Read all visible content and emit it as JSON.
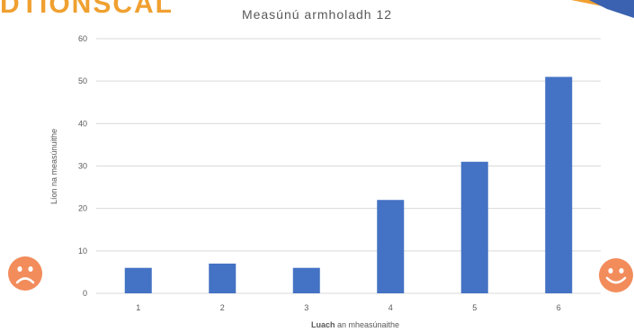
{
  "logo": {
    "text": "DTIONSCAL"
  },
  "chart_data": {
    "type": "bar",
    "title": "Measúnú armholadh 12",
    "xlabel_bold": "Luach",
    "xlabel_rest": "an mheasúnaithe",
    "ylabel": "Líon na measúnuithe",
    "categories": [
      "1",
      "2",
      "3",
      "4",
      "5",
      "6"
    ],
    "values": [
      6,
      7,
      6,
      22,
      31,
      51
    ],
    "ylim": [
      0,
      60
    ],
    "yticks": [
      0,
      10,
      20,
      30,
      40,
      50,
      60
    ],
    "grid": true,
    "bar_color": "#4472c4",
    "grid_color": "#d9d9d9"
  },
  "icons": {
    "left": "sad-face-icon",
    "right": "happy-face-icon",
    "face_color": "#f28c5b"
  }
}
